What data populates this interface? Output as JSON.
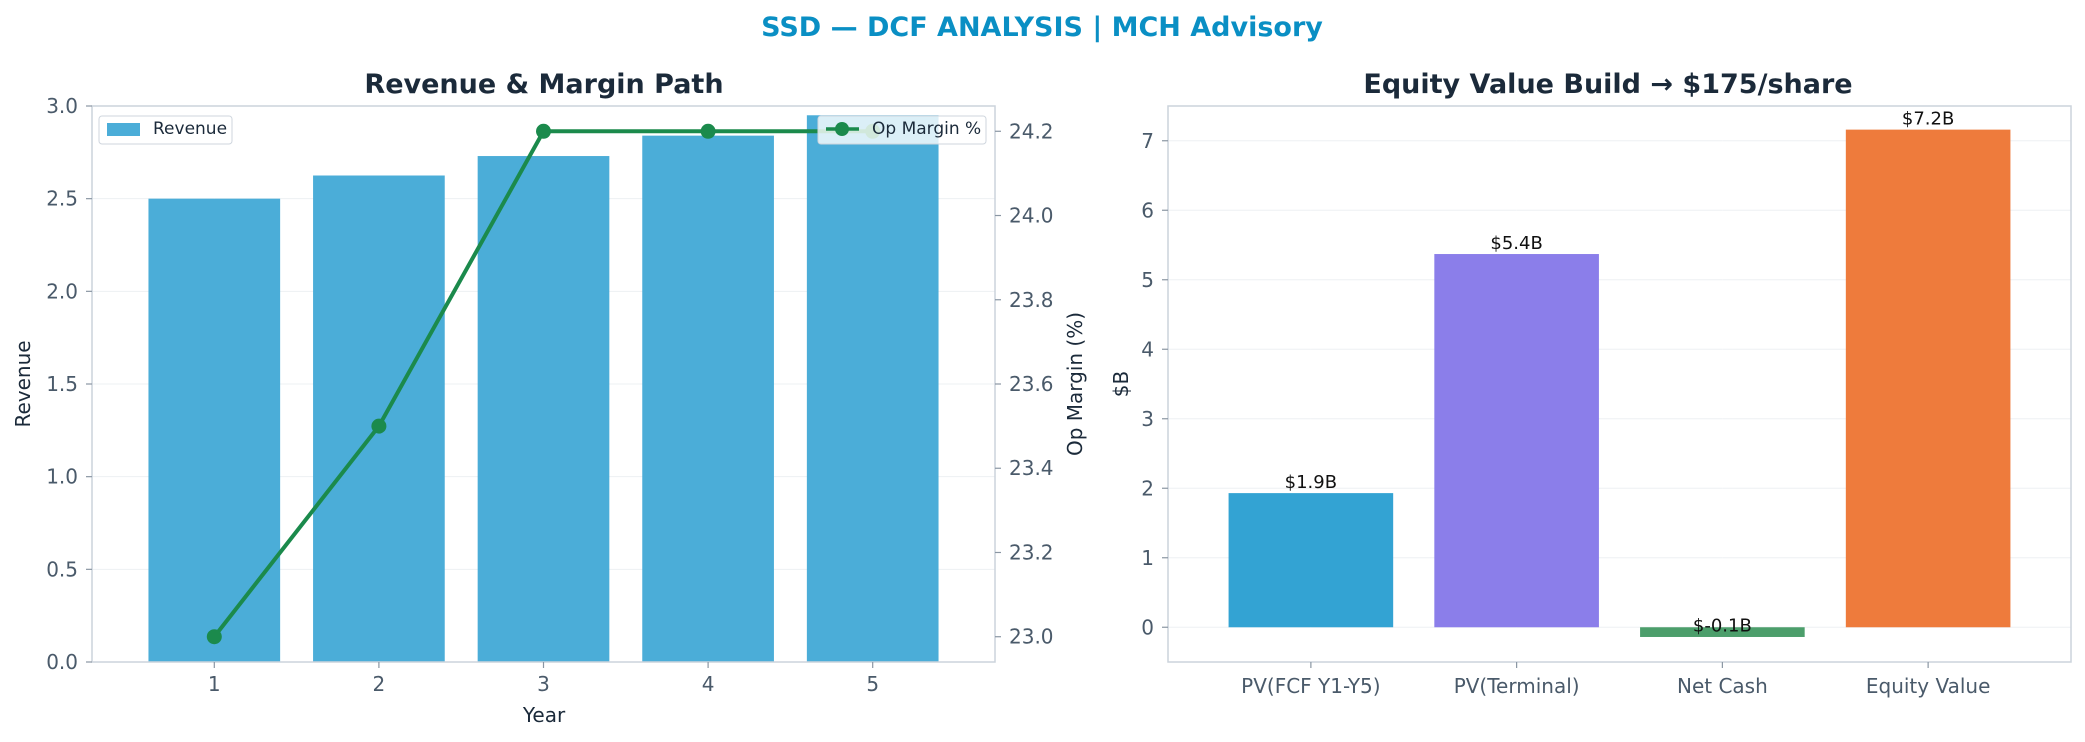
{
  "header": {
    "title": "SSD — DCF ANALYSIS | MCH Advisory",
    "title_color": "#0a8fc4"
  },
  "chart_data": [
    {
      "type": "bar",
      "title": "Revenue & Margin Path",
      "xlabel": "Year",
      "ylabel": "Revenue",
      "categories": [
        "1",
        "2",
        "3",
        "4",
        "5"
      ],
      "ylim": [
        0,
        3.0
      ],
      "yticks": [
        "0.0",
        "0.5",
        "1.0",
        "1.5",
        "2.0",
        "2.5",
        "3.0"
      ],
      "series": [
        {
          "name": "Revenue",
          "type": "bar",
          "axis": "left",
          "color": "#4badd8",
          "values": [
            2.5,
            2.625,
            2.73,
            2.84,
            2.95
          ]
        },
        {
          "name": "Op Margin %",
          "type": "line",
          "axis": "right",
          "color": "#1b8a4c",
          "values": [
            23.0,
            23.5,
            24.2,
            24.2,
            24.2
          ]
        }
      ],
      "y2label": "Op Margin (%)",
      "y2lim": [
        22.94,
        24.26
      ],
      "y2ticks": [
        "23.0",
        "23.2",
        "23.4",
        "23.6",
        "23.8",
        "24.0",
        "24.2"
      ],
      "grid": true,
      "legend": [
        "top-left",
        "top-right"
      ]
    },
    {
      "type": "bar",
      "title": "Equity Value Build → $175/share",
      "xlabel": "",
      "ylabel": "$B",
      "categories": [
        "PV(FCF Y1-Y5)",
        "PV(Terminal)",
        "Net Cash",
        "Equity Value"
      ],
      "values": [
        1.93,
        5.37,
        -0.14,
        7.16
      ],
      "data_labels": [
        "$1.9B",
        "$5.4B",
        "$-0.1B",
        "$7.2B"
      ],
      "colors": [
        "#33a3d3",
        "#8b7eea",
        "#4c9e6b",
        "#ee7b3c"
      ],
      "ylim": [
        -0.5,
        7.5
      ],
      "yticks": [
        "0",
        "1",
        "2",
        "3",
        "4",
        "5",
        "6",
        "7"
      ],
      "grid": true
    }
  ]
}
